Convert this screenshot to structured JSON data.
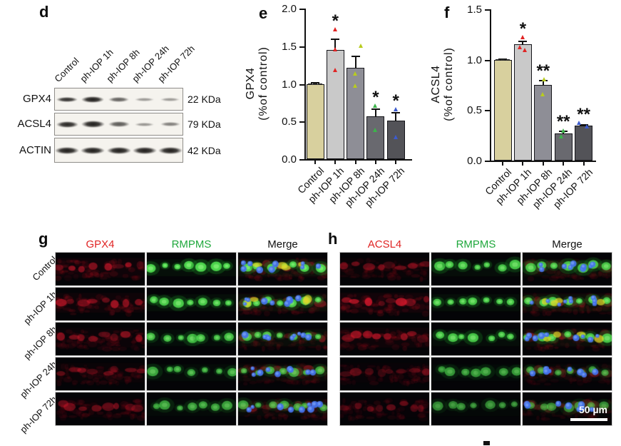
{
  "panels": {
    "d": {
      "label": "d",
      "lanes": [
        "Control",
        "ph-IOP 1h",
        "ph-IOP 8h",
        "ph-IOP 24h",
        "ph-IOP 72h"
      ],
      "blots": [
        {
          "protein": "GPX4",
          "kda": "22 KDa",
          "intensities": [
            0.9,
            1.0,
            0.62,
            0.3,
            0.3
          ],
          "thickness": [
            7,
            9,
            7,
            5,
            5
          ],
          "widths": [
            30,
            32,
            29,
            27,
            27
          ]
        },
        {
          "protein": "ACSL4",
          "kda": "79 KDa",
          "intensities": [
            0.95,
            1.0,
            0.65,
            0.32,
            0.45
          ],
          "thickness": [
            9,
            10,
            8,
            5,
            6
          ],
          "widths": [
            31,
            33,
            30,
            27,
            28
          ]
        },
        {
          "protein": "ACTIN",
          "kda": "42 KDa",
          "intensities": [
            1,
            1,
            1,
            1,
            1
          ],
          "thickness": [
            10,
            10,
            10,
            10,
            10
          ],
          "widths": [
            34,
            34,
            34,
            34,
            34
          ]
        }
      ]
    },
    "e": {
      "label": "e"
    },
    "f": {
      "label": "f"
    },
    "g": {
      "label": "g",
      "columns": [
        {
          "label": "GPX4",
          "color": "#e02424"
        },
        {
          "label": "RMPMS",
          "color": "#1fa83c"
        },
        {
          "label": "Merge",
          "color": "#111111"
        }
      ],
      "rows": [
        {
          "label": "Control",
          "red": 0.85,
          "green": 1.0,
          "yellow": true
        },
        {
          "label": "ph-IOP 1h",
          "red": 0.8,
          "green": 0.9,
          "yellow": true
        },
        {
          "label": "ph-IOP 8h",
          "red": 0.6,
          "green": 0.8,
          "yellow": false
        },
        {
          "label": "ph-IOP 24h",
          "red": 0.45,
          "green": 0.62,
          "yellow": false
        },
        {
          "label": "ph-IOP 72h",
          "red": 0.4,
          "green": 0.55,
          "yellow": false
        }
      ]
    },
    "h": {
      "label": "h",
      "columns": [
        {
          "label": "ACSL4",
          "color": "#e02424"
        },
        {
          "label": "RMPMS",
          "color": "#1fa83c"
        },
        {
          "label": "Merge",
          "color": "#111111"
        }
      ],
      "rows": [
        {
          "label": "Control",
          "red": 0.5,
          "green": 0.85,
          "yellow": false
        },
        {
          "label": "ph-IOP 1h",
          "red": 1.0,
          "green": 0.9,
          "yellow": true
        },
        {
          "label": "ph-IOP 8h",
          "red": 0.8,
          "green": 0.85,
          "yellow": true
        },
        {
          "label": "ph-IOP 24h",
          "red": 0.35,
          "green": 0.5,
          "yellow": false
        },
        {
          "label": "ph-IOP 72h",
          "red": 0.3,
          "green": 0.4,
          "yellow": false
        }
      ],
      "scale_bar": "50 µm"
    }
  },
  "chart_data": [
    {
      "panel": "e",
      "type": "bar",
      "ylabel_line1": "GPX4",
      "ylabel_line2": "(%of control)",
      "categories": [
        "Control",
        "ph-IOP 1h",
        "ph-IOP 8h",
        "ph-IOP 24h",
        "ph-IOP 72h"
      ],
      "values": [
        1.0,
        1.45,
        1.21,
        0.57,
        0.51
      ],
      "errors": [
        0.02,
        0.15,
        0.16,
        0.1,
        0.12
      ],
      "significance": [
        "",
        "*",
        "",
        "*",
        "*"
      ],
      "points": [
        [
          1.0,
          1.0,
          1.0
        ],
        [
          1.72,
          1.45,
          1.18
        ],
        [
          1.5,
          1.13,
          0.97
        ],
        [
          0.7,
          0.38
        ],
        [
          0.65,
          0.28
        ]
      ],
      "point_dx": [
        [
          -7,
          0,
          7
        ],
        [
          0,
          0,
          0
        ],
        [
          8,
          0,
          0
        ],
        [
          0,
          0
        ],
        [
          0,
          0
        ]
      ],
      "ylim": [
        0,
        2.0
      ],
      "yticks": [
        "0.0",
        "0.5",
        "1.0",
        "1.5",
        "2.0"
      ],
      "grid": false,
      "bar_colors": [
        "#d8d09e",
        "#c9c9c9",
        "#8e8e96",
        "#69696f",
        "#535358"
      ],
      "point_colors": [
        "#2a2a2a",
        "#e02424",
        "#b8cc1e",
        "#3cb44a",
        "#3c5bce"
      ],
      "control_point_style": "dash"
    },
    {
      "panel": "f",
      "type": "bar",
      "ylabel_line1": "ACSL4",
      "ylabel_line2": "(%of control)",
      "categories": [
        "Control",
        "ph-IOP 1h",
        "ph-IOP 8h",
        "ph-IOP 24h",
        "ph-IOP 72h"
      ],
      "values": [
        1.0,
        1.15,
        0.75,
        0.27,
        0.35
      ],
      "errors": [
        0.01,
        0.04,
        0.05,
        0.03,
        0.01
      ],
      "significance": [
        "",
        "*",
        "**",
        "**",
        "**"
      ],
      "points": [
        [
          1.0,
          1.0,
          1.0
        ],
        [
          1.22,
          1.12,
          1.09
        ],
        [
          0.8,
          0.65
        ],
        [
          0.29,
          0.23
        ],
        [
          0.37,
          0.33
        ]
      ],
      "point_dx": [
        [
          -7,
          0,
          7
        ],
        [
          0,
          -4,
          3
        ],
        [
          2,
          0
        ],
        [
          0,
          -3
        ],
        [
          -6,
          5
        ]
      ],
      "ylim": [
        0,
        1.5
      ],
      "yticks": [
        "0.0",
        "0.5",
        "1.0",
        "1.5"
      ],
      "grid": false,
      "bar_colors": [
        "#d8d09e",
        "#c9c9c9",
        "#8e8e96",
        "#69696f",
        "#535358"
      ],
      "point_colors": [
        "#2a2a2a",
        "#e02424",
        "#b8cc1e",
        "#3cb44a",
        "#3c5bce"
      ],
      "control_point_style": "dash"
    }
  ]
}
